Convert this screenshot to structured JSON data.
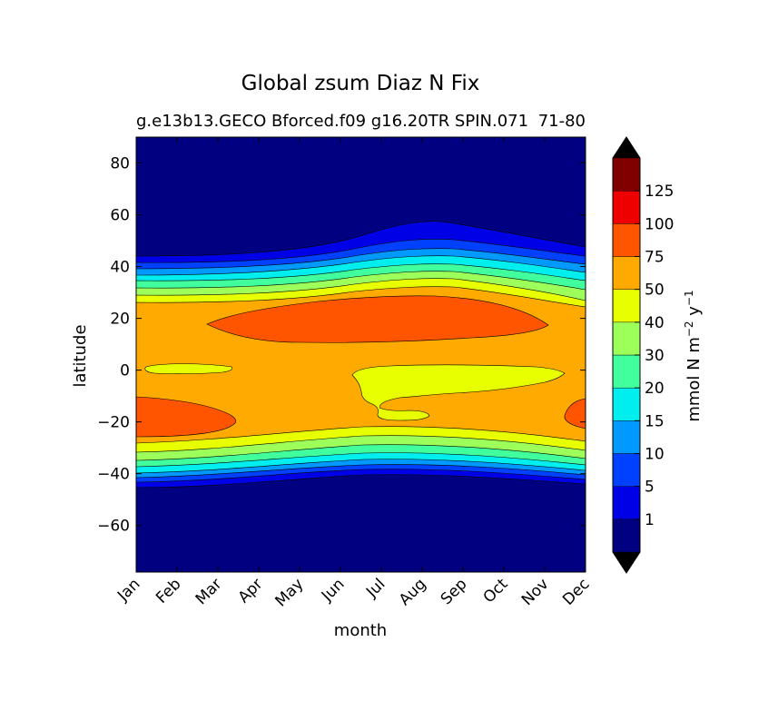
{
  "chart_data": {
    "type": "contour",
    "title": "Global zsum Diaz N Fix",
    "subtitle_left": "g.e13b13.GECO Bforced.f09 g16.20TR SPIN.071",
    "subtitle_right": "71-80",
    "xlabel": "month",
    "ylabel": "latitude",
    "x_ticks": [
      "Jan",
      "Feb",
      "Mar",
      "Apr",
      "May",
      "Jun",
      "Jul",
      "Aug",
      "Sep",
      "Oct",
      "Nov",
      "Dec"
    ],
    "y_ticks": [
      "80",
      "60",
      "40",
      "20",
      "0",
      "−20",
      "−40",
      "−60"
    ],
    "ylim": [
      -78,
      90
    ],
    "colorbar": {
      "label_main": "mmol N m",
      "label_exp1": "−2",
      "label_mid": " y",
      "label_exp2": "−1",
      "levels": [
        "1",
        "5",
        "10",
        "15",
        "20",
        "30",
        "40",
        "50",
        "75",
        "100",
        "125"
      ],
      "colors": [
        "#000080",
        "#0000e6",
        "#0040ff",
        "#0099ff",
        "#00eeee",
        "#40ff9c",
        "#9cff5a",
        "#e8ff00",
        "#ffaa00",
        "#ff5500",
        "#ee0000",
        "#800000"
      ],
      "extend": "both",
      "extend_color": "#000000"
    }
  }
}
